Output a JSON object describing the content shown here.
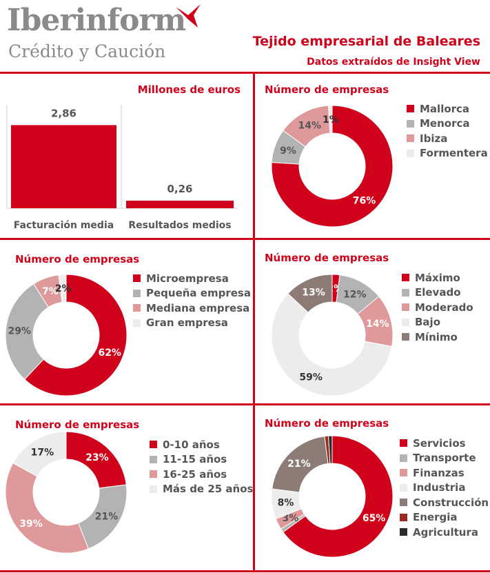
{
  "header": {
    "brand": "Iberinform",
    "brand_sub": "Crédito y Caución",
    "title": "Tejido empresarial de Baleares",
    "subtitle": "Datos extraídos de Insight View"
  },
  "colors": {
    "brand_red": "#d0021b",
    "grey": "#b3b3b3",
    "pink": "#e0999b",
    "light": "#ececec",
    "taupe": "#8c7c75",
    "dark_red": "#9b2a1f",
    "black": "#2b2b2b"
  },
  "chart_data": [
    {
      "type": "bar",
      "title": "Millones de euros",
      "categories": [
        "Facturación media",
        "Resultados medios"
      ],
      "values": [
        2.86,
        0.26
      ],
      "value_labels": [
        "2,86",
        "0,26"
      ],
      "ylim": [
        0,
        4.2
      ],
      "grid": false
    },
    {
      "type": "pie",
      "title": "Número de empresas",
      "labels": [
        "Mallorca",
        "Menorca",
        "Ibiza",
        "Formentera"
      ],
      "values": [
        76,
        9,
        14,
        1
      ],
      "value_labels": [
        "76%",
        "9%",
        "14%",
        "1%"
      ],
      "colors": [
        "#d0021b",
        "#b3b3b3",
        "#e0999b",
        "#ececec"
      ],
      "label_colors": [
        "#ffffff",
        "#555555",
        "#555555",
        "#333333"
      ]
    },
    {
      "type": "pie",
      "title": "Número de empresas",
      "labels": [
        "Microempresa",
        "Pequeña empresa",
        "Mediana empresa",
        "Gran empresa"
      ],
      "values": [
        62,
        29,
        7,
        2
      ],
      "value_labels": [
        "62%",
        "29%",
        "7%",
        "2%"
      ],
      "colors": [
        "#d0021b",
        "#b3b3b3",
        "#e0999b",
        "#ececec"
      ],
      "label_colors": [
        "#ffffff",
        "#555555",
        "#ffffff",
        "#333333"
      ]
    },
    {
      "type": "pie",
      "title": "Número de empresas",
      "labels": [
        "Máximo",
        "Elevado",
        "Moderado",
        "Bajo",
        "Mínimo"
      ],
      "values": [
        2,
        12,
        14,
        59,
        13
      ],
      "value_labels": [
        "2%",
        "12%",
        "14%",
        "59%",
        "13%"
      ],
      "colors": [
        "#d0021b",
        "#b3b3b3",
        "#e0999b",
        "#ececec",
        "#8c7c75"
      ],
      "label_colors": [
        "#ffffff",
        "#555555",
        "#ffffff",
        "#333333",
        "#ffffff"
      ]
    },
    {
      "type": "pie",
      "title": "Número de empresas",
      "labels": [
        "0-10 años",
        "11-15 años",
        "16-25 años",
        "Más de 25 años"
      ],
      "values": [
        23,
        21,
        39,
        17
      ],
      "value_labels": [
        "23%",
        "21%",
        "39%",
        "17%"
      ],
      "colors": [
        "#d0021b",
        "#b3b3b3",
        "#e0999b",
        "#ececec"
      ],
      "label_colors": [
        "#ffffff",
        "#555555",
        "#ffffff",
        "#333333"
      ]
    },
    {
      "type": "pie",
      "title": "Número de empresas",
      "labels": [
        "Servicios",
        "Transporte",
        "Finanzas",
        "Industria",
        "Construcción",
        "Energia",
        "Agricultura"
      ],
      "values": [
        65,
        1,
        3,
        8,
        21,
        1,
        1
      ],
      "value_labels": [
        "65%",
        "",
        "3%",
        "8%",
        "21%",
        "",
        ""
      ],
      "colors": [
        "#d0021b",
        "#b3b3b3",
        "#e0999b",
        "#ececec",
        "#8c7c75",
        "#9b2a1f",
        "#2b2b2b"
      ],
      "label_colors": [
        "#ffffff",
        "#555555",
        "#555555",
        "#333333",
        "#ffffff",
        "#ffffff",
        "#ffffff"
      ]
    }
  ]
}
